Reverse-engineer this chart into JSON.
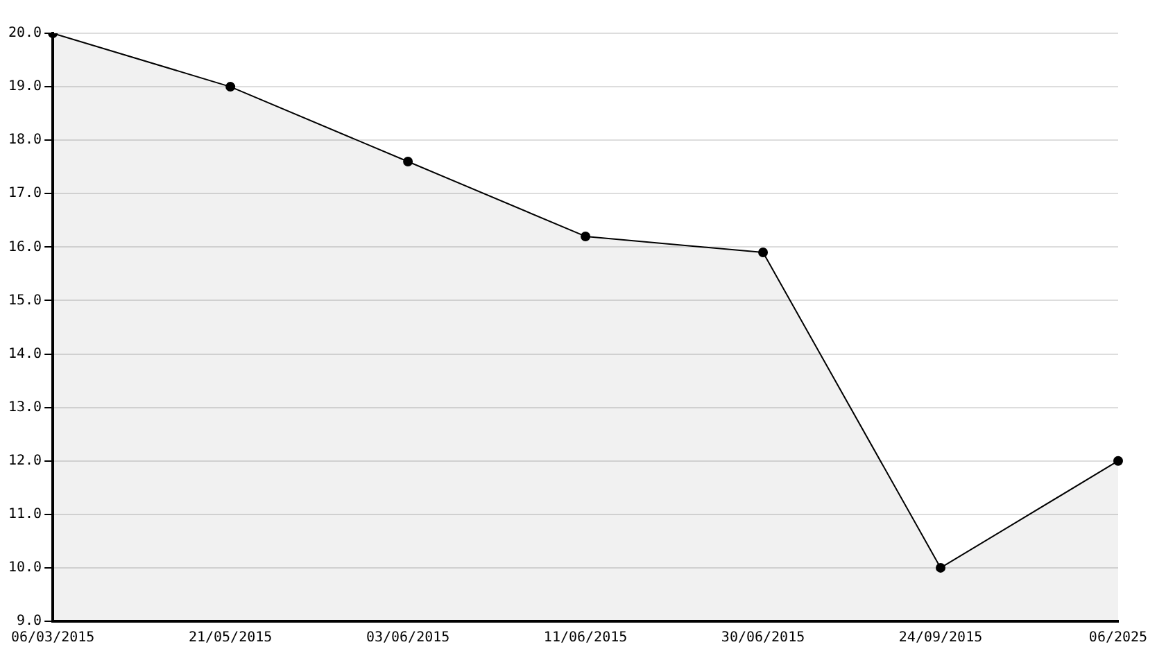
{
  "chart_data": {
    "type": "area",
    "categories": [
      "06/03/2015",
      "21/05/2015",
      "03/06/2015",
      "11/06/2015",
      "30/06/2015",
      "24/09/2015",
      "06/2025"
    ],
    "series": [
      {
        "color": "#000000",
        "values": [
          20.0,
          19.0,
          17.6,
          16.2,
          15.9,
          10.0,
          12.0
        ]
      }
    ],
    "ylim": [
      9,
      20
    ],
    "yticks": [
      {
        "value": 9,
        "label": "9.0"
      },
      {
        "value": 10,
        "label": "10.0"
      },
      {
        "value": 11,
        "label": "11.0"
      },
      {
        "value": 12,
        "label": "12.0"
      },
      {
        "value": 13,
        "label": "13.0"
      },
      {
        "value": 14,
        "label": "14.0"
      },
      {
        "value": 15,
        "label": "15.0"
      },
      {
        "value": 16,
        "label": "16.0"
      },
      {
        "value": 17,
        "label": "17.0"
      },
      {
        "value": 18,
        "label": "18.0"
      },
      {
        "value": 19,
        "label": "19.0"
      },
      {
        "value": 20,
        "label": "20.0"
      }
    ],
    "grid": "y",
    "marker": "circle",
    "line_style": "solid"
  }
}
